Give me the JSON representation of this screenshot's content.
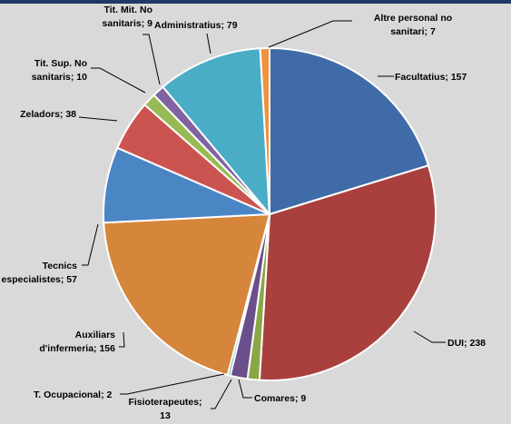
{
  "chart_data": {
    "type": "pie",
    "title": "",
    "slices": [
      {
        "label": "Facultatius",
        "value": 157,
        "color": "#3f6ca8",
        "label_lines": [
          "Facultatius; 157"
        ]
      },
      {
        "label": "DUI",
        "value": 238,
        "color": "#a9403e",
        "label_lines": [
          "DUI; 238"
        ]
      },
      {
        "label": "Comares",
        "value": 9,
        "color": "#8aa646",
        "label_lines": [
          "Comares; 9"
        ]
      },
      {
        "label": "Fisioterapeutes",
        "value": 13,
        "color": "#6a4f8b",
        "label_lines": [
          "Fisioterapeutes;",
          "13"
        ]
      },
      {
        "label": "T. Ocupacional",
        "value": 2,
        "color": "#3d9fb5",
        "label_lines": [
          "T. Ocupacional; 2"
        ]
      },
      {
        "label": "Auxiliars d'infermeria",
        "value": 156,
        "color": "#d6863a",
        "label_lines": [
          "Auxiliars",
          "d'infermeria; 156"
        ]
      },
      {
        "label": "Tecnics especialistes",
        "value": 57,
        "color": "#4b86c4",
        "label_lines": [
          "Tecnics",
          "especialistes; 57"
        ]
      },
      {
        "label": "Zeladors",
        "value": 38,
        "color": "#cb5450",
        "label_lines": [
          "Zeladors; 38"
        ]
      },
      {
        "label": "Tit. Sup. No sanitaris",
        "value": 10,
        "color": "#98ba55",
        "label_lines": [
          "Tit. Sup. No",
          "sanitaris; 10"
        ]
      },
      {
        "label": "Tit. Mit. No sanitaris",
        "value": 9,
        "color": "#8064a2",
        "label_lines": [
          "Tit. Mit. No",
          "sanitaris; 9"
        ]
      },
      {
        "label": "Administratius",
        "value": 79,
        "color": "#4bacc6",
        "label_lines": [
          "Administratius; 79"
        ]
      },
      {
        "label": "Altre personal no sanitari",
        "value": 7,
        "color": "#f0923d",
        "label_lines": [
          "Altre personal no",
          "sanitari; 7"
        ]
      }
    ],
    "legend": "none",
    "data_labels": "outside with leader lines"
  },
  "colors": {
    "background": "#d9d9d9",
    "top_rule": "#1f3864"
  }
}
